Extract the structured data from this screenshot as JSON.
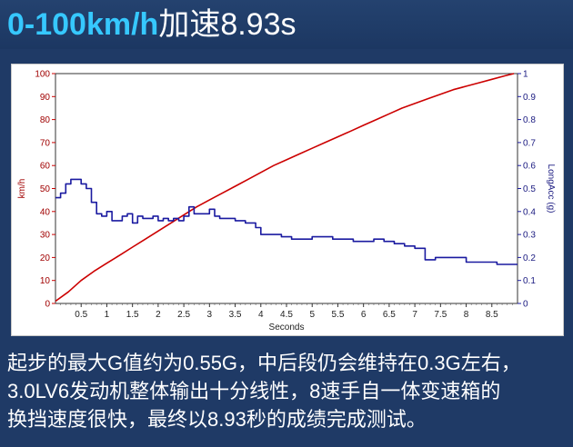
{
  "header": {
    "title_accent": "0-100km/h",
    "title_rest": "加速8.93s"
  },
  "caption": {
    "lines": [
      "起步的最大G值约为0.55G，中后段仍会维持在0.3G左右，",
      "3.0LV6发动机整体输出十分线性，8速手自一体变速箱的",
      "换挡速度很快，最终以8.93秒的成绩完成测试。"
    ]
  },
  "chart_data": {
    "type": "line",
    "xlabel": "Seconds",
    "ylabel": "km/h",
    "y2label": "LongAcc (g)",
    "xlim": [
      0,
      9.0
    ],
    "ylim": [
      0,
      100
    ],
    "y2lim": [
      0,
      1
    ],
    "xticks": [
      0.5,
      1,
      1.5,
      2,
      2.5,
      3,
      3.5,
      4,
      4.5,
      5,
      5.5,
      6,
      6.5,
      7,
      7.5,
      8,
      8.5
    ],
    "yticks": [
      0,
      10,
      20,
      30,
      40,
      50,
      60,
      70,
      80,
      90,
      100
    ],
    "y2ticks": [
      0,
      0.1,
      0.2,
      0.3,
      0.4,
      0.5,
      0.6,
      0.7,
      0.8,
      0.9,
      1
    ],
    "grid": false,
    "series": [
      {
        "axis": "left",
        "color": "#cc0000",
        "x": [
          0,
          0.25,
          0.5,
          0.75,
          1,
          1.25,
          1.5,
          1.75,
          2,
          2.25,
          2.5,
          2.75,
          3,
          3.25,
          3.5,
          3.75,
          4,
          4.25,
          4.5,
          4.75,
          5,
          5.25,
          5.5,
          5.75,
          6,
          6.25,
          6.5,
          6.75,
          7,
          7.25,
          7.5,
          7.75,
          8,
          8.25,
          8.5,
          8.75,
          8.93
        ],
        "values": [
          1,
          5,
          10,
          14,
          17.5,
          21,
          24.5,
          28,
          31.5,
          35,
          38.5,
          42,
          45,
          48,
          51,
          54,
          57,
          60,
          62.5,
          65,
          67.5,
          70,
          72.5,
          75,
          77.5,
          80,
          82.5,
          85,
          87,
          89,
          91,
          93,
          94.5,
          96,
          97.5,
          99,
          100
        ]
      },
      {
        "axis": "right",
        "color": "#1a1aa0",
        "x": [
          0,
          0.1,
          0.2,
          0.3,
          0.4,
          0.5,
          0.6,
          0.7,
          0.8,
          0.9,
          1.0,
          1.1,
          1.2,
          1.3,
          1.4,
          1.5,
          1.6,
          1.7,
          1.8,
          1.9,
          2.0,
          2.1,
          2.2,
          2.3,
          2.4,
          2.5,
          2.6,
          2.7,
          2.8,
          2.9,
          3.0,
          3.1,
          3.2,
          3.3,
          3.4,
          3.5,
          3.6,
          3.7,
          3.8,
          3.9,
          4.0,
          4.2,
          4.4,
          4.6,
          4.8,
          5.0,
          5.2,
          5.4,
          5.6,
          5.8,
          6.0,
          6.2,
          6.4,
          6.6,
          6.8,
          7.0,
          7.2,
          7.4,
          7.6,
          7.8,
          8.0,
          8.2,
          8.4,
          8.6,
          8.8,
          9.0
        ],
        "values": [
          0.46,
          0.48,
          0.52,
          0.54,
          0.54,
          0.52,
          0.5,
          0.44,
          0.39,
          0.38,
          0.4,
          0.36,
          0.36,
          0.38,
          0.39,
          0.35,
          0.38,
          0.37,
          0.37,
          0.38,
          0.36,
          0.37,
          0.36,
          0.37,
          0.36,
          0.38,
          0.42,
          0.39,
          0.39,
          0.39,
          0.41,
          0.38,
          0.37,
          0.37,
          0.37,
          0.36,
          0.36,
          0.35,
          0.35,
          0.33,
          0.3,
          0.3,
          0.29,
          0.28,
          0.28,
          0.29,
          0.29,
          0.28,
          0.28,
          0.27,
          0.27,
          0.28,
          0.27,
          0.26,
          0.25,
          0.24,
          0.19,
          0.2,
          0.2,
          0.2,
          0.18,
          0.18,
          0.18,
          0.17,
          0.17,
          0.17
        ]
      }
    ]
  }
}
